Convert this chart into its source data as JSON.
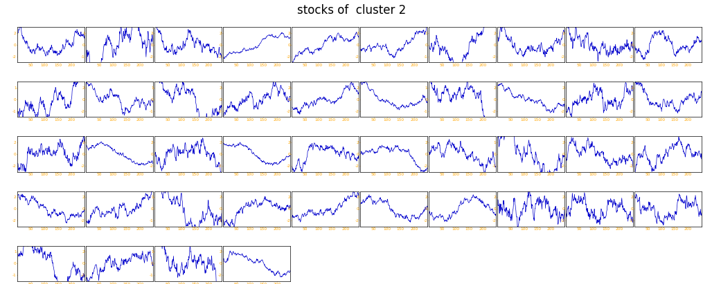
{
  "title": "stocks of  cluster 2",
  "n_stocks": 44,
  "n_cols": 10,
  "n_rows": 5,
  "x_ticks": [
    50,
    100,
    150,
    200
  ],
  "x_tick_labels": [
    "50",
    "100",
    "150",
    "200"
  ],
  "x_max": 250,
  "x_min": 0,
  "line_color": "#0000cc",
  "background_color": "#ffffff",
  "title_fontsize": 12,
  "tick_fontsize": 4.2,
  "seed": 42,
  "ytick_pattern": [
    2,
    1,
    2,
    2,
    2,
    2,
    1,
    2,
    2,
    2,
    1,
    2,
    1,
    2,
    2,
    2,
    1,
    2,
    2,
    2,
    2,
    2,
    2,
    2,
    2,
    2,
    2,
    1,
    2,
    2,
    2,
    2,
    1,
    2,
    2,
    2,
    2,
    2,
    2,
    2,
    1,
    2,
    1,
    2
  ]
}
